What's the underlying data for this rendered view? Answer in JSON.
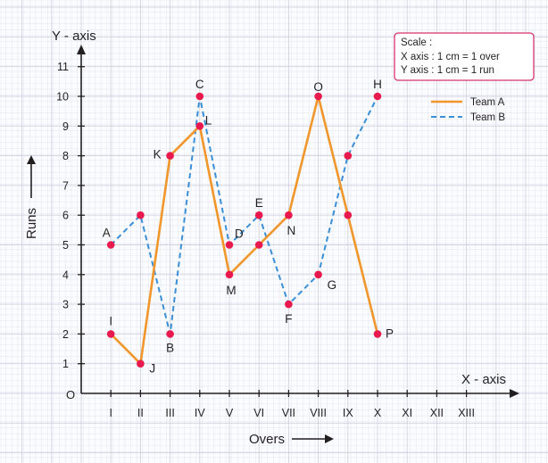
{
  "chart_data": {
    "type": "line",
    "x_axis_title": "X - axis",
    "y_axis_title": "Y - axis",
    "x_caption": "Overs",
    "y_caption": "Runs",
    "origin_label": "O",
    "categories": [
      "I",
      "II",
      "III",
      "IV",
      "V",
      "VI",
      "VII",
      "VIII",
      "IX",
      "X",
      "XI",
      "XII",
      "XIII"
    ],
    "y_ticks": [
      1,
      2,
      3,
      4,
      5,
      6,
      7,
      8,
      9,
      10,
      11
    ],
    "ylim": [
      0,
      11
    ],
    "grid": true,
    "scale": {
      "title": "Scale :",
      "line1": "X axis : 1 cm = 1 over",
      "line2": "Y axis : 1 cm = 1 run"
    },
    "legend_position": "top-right",
    "series": [
      {
        "name": "Team A",
        "color": "#f0962a",
        "style": "solid",
        "x": [
          1,
          2,
          3,
          4,
          5,
          6,
          7,
          8,
          9,
          10
        ],
        "values": [
          2,
          1,
          8,
          9,
          4,
          5,
          6,
          10,
          6,
          2
        ],
        "labels": [
          "I",
          "J",
          "K",
          "L",
          "M",
          "",
          "N",
          "O",
          "",
          "P"
        ]
      },
      {
        "name": "Team B",
        "color": "#3a8fd6",
        "style": "dashed",
        "x": [
          1,
          2,
          3,
          4,
          5,
          6,
          7,
          8,
          9,
          10
        ],
        "values": [
          5,
          6,
          2,
          10,
          5,
          6,
          3,
          4,
          8,
          10
        ],
        "labels": [
          "A",
          "",
          "B",
          "C",
          "D",
          "E",
          "F",
          "G",
          "",
          "H"
        ]
      }
    ],
    "point_color": "#e8194d"
  }
}
